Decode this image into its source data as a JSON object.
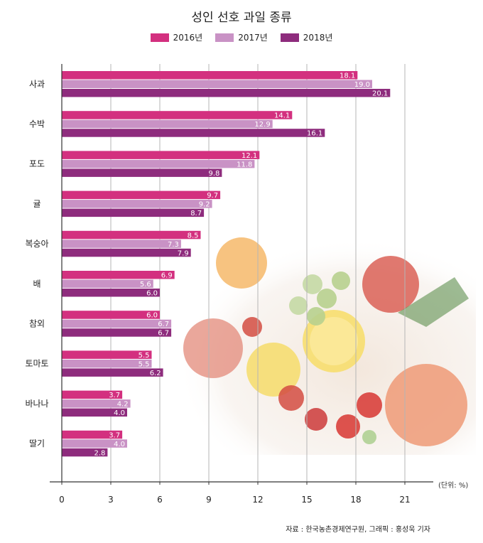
{
  "chart_data": {
    "type": "bar",
    "orientation": "horizontal",
    "title": "성인 선호 과일 종류",
    "categories": [
      "사과",
      "수박",
      "포도",
      "귤",
      "복숭아",
      "배",
      "참외",
      "토마토",
      "바나나",
      "딸기"
    ],
    "series": [
      {
        "name": "2016년",
        "color": "#d3307f",
        "values": [
          18.1,
          14.1,
          12.1,
          9.7,
          8.5,
          6.9,
          6.0,
          5.5,
          3.7,
          3.7
        ],
        "labels": [
          "18.1",
          "14.1",
          "12.1",
          "9.7",
          "8.5",
          "6.9",
          "6.0",
          "5.5",
          "3.7",
          "3.7"
        ]
      },
      {
        "name": "2017년",
        "color": "#c992c5",
        "values": [
          19.0,
          12.9,
          11.8,
          9.2,
          7.3,
          5.6,
          6.7,
          5.5,
          4.2,
          4.0
        ],
        "labels": [
          "19.0",
          "12.9",
          "11.8",
          "9.2",
          "7.3",
          "5.6",
          "6.7",
          "5.5",
          "4.2",
          "4.0"
        ]
      },
      {
        "name": "2018년",
        "color": "#8e2c7d",
        "values": [
          20.1,
          16.1,
          9.8,
          8.7,
          7.9,
          6.0,
          6.7,
          6.2,
          4.0,
          2.8
        ],
        "labels": [
          "20.1",
          "16.1",
          "9.8",
          "8.7",
          "7.9",
          "6.0",
          "6.7",
          "6.2",
          "4.0",
          "2.8"
        ]
      }
    ],
    "xlim": [
      0,
      23
    ],
    "xticks": [
      "0",
      "3",
      "6",
      "9",
      "12",
      "15",
      "18",
      "21"
    ],
    "xtick_values": [
      0,
      3,
      6,
      9,
      12,
      15,
      18,
      21
    ],
    "unit_label": "(단위: %)",
    "grid": true,
    "legend_position": "top"
  },
  "source": "자료 : 한국농촌경제연구원, 그래픽 : 홍성욱 기자"
}
